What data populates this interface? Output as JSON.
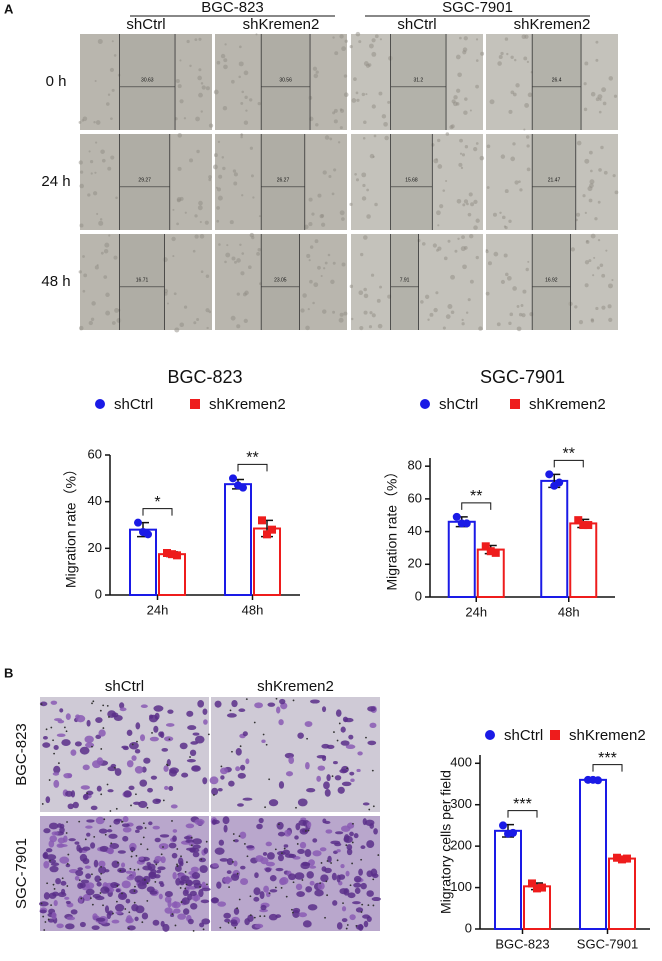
{
  "panel_a": {
    "label": "A",
    "groups": [
      "BGC-823",
      "SGC-7901"
    ],
    "columns": [
      "shCtrl",
      "shKremen2",
      "shCtrl",
      "shKremen2"
    ],
    "rows": [
      "0 h",
      "24 h",
      "48 h"
    ],
    "gap_labels": [
      [
        "30.63",
        "30.56",
        "31.2",
        "26.4"
      ],
      [
        "29.27",
        "26.27",
        "15.68",
        "21.47"
      ],
      [
        "16.71",
        "23.05",
        "7.91",
        "16.92"
      ]
    ]
  },
  "panel_b": {
    "label": "B",
    "columns": [
      "shCtrl",
      "shKremen2"
    ],
    "rows": [
      "BGC-823",
      "SGC-7901"
    ]
  },
  "chart_data": [
    {
      "type": "bar",
      "title": "BGC-823",
      "y_label": "Migration rate（%）",
      "categories": [
        "24h",
        "48h"
      ],
      "series": [
        {
          "name": "shCtrl",
          "color": "#1a1ae6",
          "marker": "circle",
          "values": [
            28,
            47.5
          ],
          "errors": [
            3,
            2
          ],
          "points": [
            [
              31,
              27,
              26
            ],
            [
              50,
              47,
              46
            ]
          ]
        },
        {
          "name": "shKremen2",
          "color": "#ee1c1c",
          "marker": "square",
          "values": [
            17.5,
            28.5
          ],
          "errors": [
            1,
            3.5
          ],
          "points": [
            [
              18,
              17.5,
              17
            ],
            [
              32,
              26,
              28
            ]
          ]
        }
      ],
      "significance": [
        "*",
        "**"
      ],
      "ylim": [
        0,
        60
      ],
      "yticks": [
        0,
        20,
        40,
        60
      ]
    },
    {
      "type": "bar",
      "title": "SGC-7901",
      "y_label": "Migration rate（%）",
      "categories": [
        "24h",
        "48h"
      ],
      "series": [
        {
          "name": "shCtrl",
          "color": "#1a1ae6",
          "marker": "circle",
          "values": [
            46,
            71
          ],
          "errors": [
            3,
            4
          ],
          "points": [
            [
              49,
              45,
              45
            ],
            [
              75,
              68,
              70
            ]
          ]
        },
        {
          "name": "shKremen2",
          "color": "#ee1c1c",
          "marker": "square",
          "values": [
            29,
            45
          ],
          "errors": [
            2.5,
            2.5
          ],
          "points": [
            [
              31,
              28,
              27
            ],
            [
              47,
              44,
              44
            ]
          ]
        }
      ],
      "significance": [
        "**",
        "**"
      ],
      "ylim": [
        0,
        85
      ],
      "yticks": [
        0,
        20,
        40,
        60,
        80
      ]
    },
    {
      "type": "bar",
      "y_label": "Migratory cells per field",
      "categories": [
        "BGC-823",
        "SGC-7901"
      ],
      "series": [
        {
          "name": "shCtrl",
          "color": "#1a1ae6",
          "marker": "circle",
          "values": [
            237,
            360
          ],
          "errors": [
            15,
            3
          ],
          "points": [
            [
              250,
              230,
              232
            ],
            [
              360,
              360,
              359
            ]
          ]
        },
        {
          "name": "shKremen2",
          "color": "#ee1c1c",
          "marker": "square",
          "values": [
            103,
            170
          ],
          "errors": [
            8,
            5
          ],
          "points": [
            [
              110,
              98,
              100
            ],
            [
              172,
              168,
              170
            ]
          ]
        }
      ],
      "significance": [
        "***",
        "***"
      ],
      "ylim": [
        0,
        420
      ],
      "yticks": [
        0,
        100,
        200,
        300,
        400
      ]
    }
  ]
}
